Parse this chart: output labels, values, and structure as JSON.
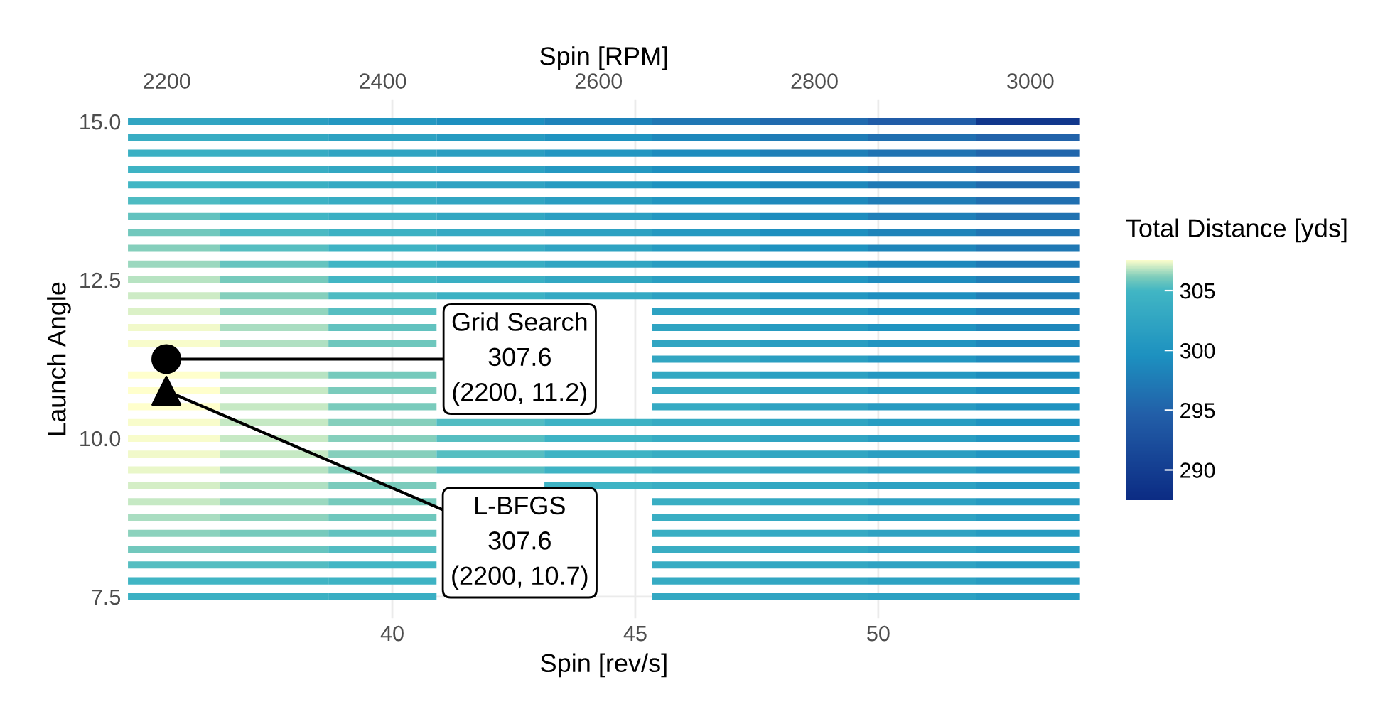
{
  "chart_data": {
    "type": "heatmap",
    "xlabel": "Spin [rev/s]",
    "x2label": "Spin [RPM]",
    "ylabel": "Launch Angle",
    "clabel": "Total Distance [yds]",
    "xlim": [
      34.56,
      54.15
    ],
    "xticks": [
      40,
      45,
      50
    ],
    "x2lim": [
      2164,
      3046
    ],
    "x2ticks": [
      2200,
      2400,
      2600,
      2800,
      3000
    ],
    "ylim": [
      7.16,
      15.34
    ],
    "yticks": [
      7.5,
      {
        "value": 10,
        "label": "10.0"
      },
      12.5,
      {
        "value": 15,
        "label": "15.0"
      }
    ],
    "clim": [
      287.5,
      307.6
    ],
    "cticks": [
      290,
      295,
      300,
      305
    ],
    "grid": true,
    "x": [
      35.35,
      37.57,
      39.8,
      42.02,
      44.24,
      46.46,
      48.68,
      50.9,
      53.12
    ],
    "y": [
      15.0,
      14.75,
      14.5,
      14.25,
      14.0,
      13.75,
      13.5,
      13.25,
      13.0,
      12.75,
      12.5,
      12.25,
      12.0,
      11.75,
      11.5,
      11.25,
      11.0,
      10.75,
      10.5,
      10.25,
      10.0,
      9.75,
      9.5,
      9.25,
      9.0,
      8.75,
      8.5,
      8.25,
      8.0,
      7.75,
      7.5
    ],
    "cells": [
      [
        302.5,
        301.5,
        300.5,
        299.4,
        298.2,
        297.0,
        295.7,
        294.3,
        289.0
      ],
      [
        303.7,
        302.9,
        302.0,
        301.0,
        299.9,
        298.7,
        297.5,
        296.2,
        295.0
      ],
      [
        304.1,
        303.3,
        302.4,
        301.4,
        300.3,
        299.1,
        297.8,
        296.6,
        295.3
      ],
      [
        304.5,
        303.7,
        302.8,
        301.8,
        300.6,
        299.4,
        298.2,
        296.9,
        295.6
      ],
      [
        304.9,
        304.1,
        303.2,
        302.1,
        301.0,
        299.8,
        298.5,
        297.2,
        295.9
      ],
      [
        305.2,
        304.4,
        303.5,
        302.5,
        301.3,
        300.1,
        298.8,
        297.5,
        296.2
      ],
      [
        305.6,
        304.8,
        303.9,
        302.8,
        301.6,
        300.4,
        299.1,
        297.8,
        296.5
      ],
      [
        305.9,
        305.1,
        304.2,
        303.1,
        301.9,
        300.7,
        299.4,
        298.1,
        296.8
      ],
      [
        306.2,
        305.4,
        304.5,
        303.4,
        302.2,
        301.0,
        299.7,
        298.4,
        297.1
      ],
      [
        306.5,
        305.7,
        304.8,
        303.7,
        302.5,
        301.3,
        300.0,
        298.7,
        297.4
      ],
      [
        306.8,
        306.0,
        305.0,
        303.9,
        302.8,
        301.5,
        300.3,
        299.0,
        297.7
      ],
      [
        307.0,
        306.2,
        305.2,
        304.2,
        303.0,
        301.8,
        300.5,
        299.3,
        297.9
      ],
      [
        307.2,
        306.4,
        305.4,
        null,
        null,
        302.0,
        300.8,
        299.5,
        298.2
      ],
      [
        307.4,
        306.6,
        305.6,
        null,
        null,
        302.3,
        301.0,
        299.8,
        298.5
      ],
      [
        307.5,
        306.7,
        305.8,
        null,
        null,
        302.5,
        301.3,
        300.0,
        298.7
      ],
      [
        null,
        null,
        null,
        null,
        null,
        302.7,
        301.5,
        300.3,
        299.0
      ],
      [
        307.6,
        306.8,
        306.0,
        null,
        null,
        302.9,
        301.7,
        300.5,
        299.2
      ],
      [
        307.6,
        306.9,
        306.1,
        null,
        null,
        303.0,
        301.9,
        300.7,
        299.4
      ],
      [
        307.6,
        306.9,
        306.1,
        null,
        null,
        303.2,
        302.1,
        300.9,
        299.7
      ],
      [
        307.5,
        306.9,
        306.2,
        305.3,
        304.4,
        303.4,
        302.3,
        301.1,
        299.9
      ],
      [
        307.5,
        306.9,
        306.2,
        305.4,
        304.5,
        303.5,
        302.4,
        301.3,
        300.1
      ],
      [
        307.4,
        306.9,
        306.2,
        305.4,
        304.5,
        303.6,
        302.6,
        301.5,
        300.3
      ],
      [
        307.3,
        306.8,
        306.2,
        305.4,
        304.6,
        303.7,
        302.7,
        301.7,
        300.5
      ],
      [
        307.1,
        306.7,
        306.1,
        null,
        304.6,
        303.8,
        302.8,
        301.8,
        300.7
      ],
      [
        306.9,
        306.5,
        306.0,
        null,
        null,
        303.8,
        302.9,
        301.9,
        300.9
      ],
      [
        306.6,
        306.3,
        305.8,
        null,
        null,
        303.8,
        303.0,
        302.0,
        301.0
      ],
      [
        306.3,
        306.0,
        305.6,
        null,
        null,
        303.8,
        303.0,
        302.1,
        301.1
      ],
      [
        305.9,
        305.7,
        305.3,
        null,
        null,
        303.7,
        302.9,
        302.1,
        301.2
      ],
      [
        305.4,
        305.3,
        305.0,
        null,
        null,
        303.5,
        302.8,
        302.1,
        301.2
      ],
      [
        304.8,
        304.7,
        304.5,
        null,
        null,
        303.3,
        302.7,
        302.0,
        301.2
      ],
      [
        304.0,
        304.0,
        303.8,
        null,
        null,
        302.9,
        302.4,
        301.8,
        301.0
      ]
    ],
    "series": [
      {
        "type": "scatter",
        "marker": "circle",
        "color": "#000000",
        "x": [
          35.35
        ],
        "values": [
          11.25
        ]
      },
      {
        "type": "scatter",
        "marker": "triangle",
        "color": "#000000",
        "x": [
          35.35
        ],
        "values": [
          10.75
        ]
      }
    ],
    "annotations": [
      {
        "text": "Grid Search\n307.6\n(2200, 11.2)",
        "x": 35.35,
        "y": 11.25
      },
      {
        "text": "L-BFGS\n307.6\n(2200, 10.7)",
        "x": 35.35,
        "y": 10.75
      }
    ]
  }
}
